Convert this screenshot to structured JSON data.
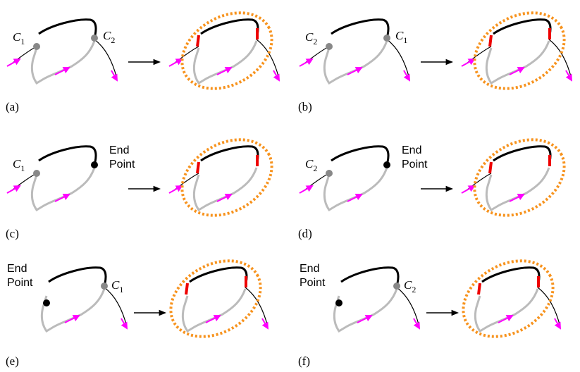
{
  "panels": [
    {
      "label": "(a)",
      "left_point": {
        "symbol": "C",
        "subscript": "1"
      },
      "right_point": {
        "symbol": "C",
        "subscript": "2"
      }
    },
    {
      "label": "(b)",
      "left_point": {
        "symbol": "C",
        "subscript": "2"
      },
      "right_point": {
        "symbol": "C",
        "subscript": "1"
      }
    },
    {
      "label": "(c)",
      "left_point": {
        "symbol": "C",
        "subscript": "1"
      },
      "right_point": {
        "lines": [
          "End",
          "Point"
        ]
      }
    },
    {
      "label": "(d)",
      "left_point": {
        "symbol": "C",
        "subscript": "2"
      },
      "right_point": {
        "lines": [
          "End",
          "Point"
        ]
      }
    },
    {
      "label": "(e)",
      "left_point": {
        "lines": [
          "End",
          "Point"
        ]
      },
      "right_point": {
        "symbol": "C",
        "subscript": "1"
      }
    },
    {
      "label": "(f)",
      "left_point": {
        "lines": [
          "End",
          "Point"
        ]
      },
      "right_point": {
        "symbol": "C",
        "subscript": "2"
      }
    }
  ]
}
